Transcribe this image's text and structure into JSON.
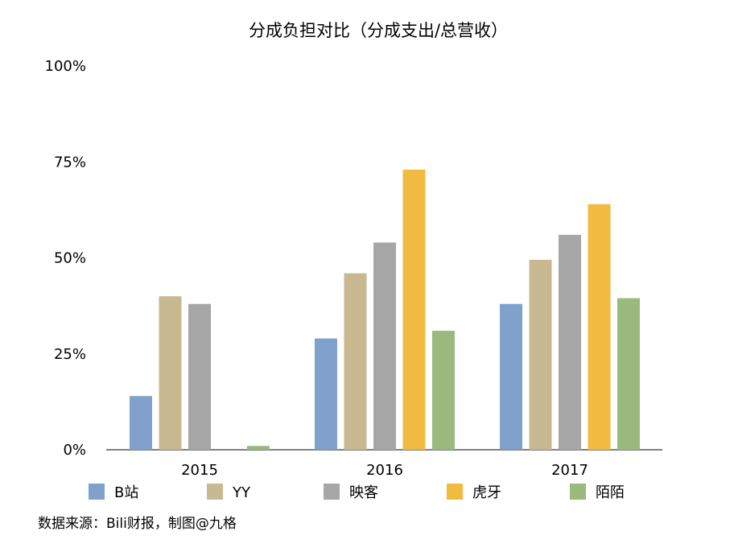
{
  "chart_data": {
    "type": "bar",
    "title": "分成负担对比（分成支出/总营收）",
    "categories": [
      "2015",
      "2016",
      "2017"
    ],
    "series": [
      {
        "name": "B站",
        "color": "#7fa1cc",
        "values": [
          14,
          29,
          38
        ]
      },
      {
        "name": "YY",
        "color": "#c8b991",
        "values": [
          40,
          46,
          49.5
        ]
      },
      {
        "name": "映客",
        "color": "#a6a6a6",
        "values": [
          38,
          54,
          56
        ]
      },
      {
        "name": "虎牙",
        "color": "#f1ba41",
        "values": [
          null,
          73,
          64
        ]
      },
      {
        "name": "陌陌",
        "color": "#9ab97c",
        "values": [
          1,
          31,
          39.5
        ]
      }
    ],
    "yticks": [
      "0%",
      "25%",
      "50%",
      "75%",
      "100%"
    ],
    "ylim": [
      0,
      100
    ],
    "xlabel": "",
    "ylabel": "",
    "grid": false,
    "legend_position": "bottom"
  },
  "source_note": "数据来源：Bili财报，制图@九格"
}
